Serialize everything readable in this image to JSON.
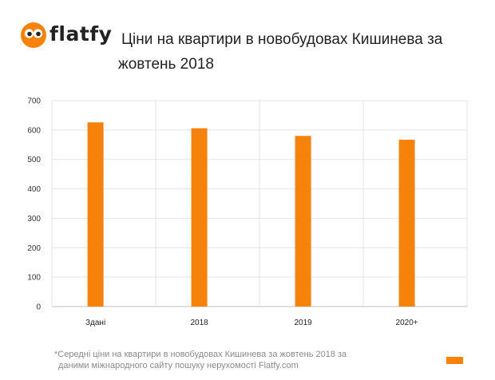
{
  "brand": {
    "logo_text": "flatfy",
    "color": "#f5820a"
  },
  "title_line1": "Ціни на квартири в новобудовах Кишинева за",
  "title_line2": "жовтень 2018",
  "footnote_line1": "*Середні ціни на квартири в новобудовах Кишинева за жовтень 2018 за",
  "footnote_line2": "даними міжнародного сайту пошуку нерухомості Flatfy.com",
  "chart_data": {
    "type": "bar",
    "categories": [
      "Здані",
      "2018",
      "2019",
      "2020+"
    ],
    "values": [
      626,
      606,
      580,
      567
    ],
    "ylim": [
      0,
      700
    ],
    "yticks": [
      0,
      100,
      200,
      300,
      400,
      500,
      600,
      700
    ],
    "grid": true,
    "bar_color": "#f5820a",
    "legend": "bottom-right"
  }
}
